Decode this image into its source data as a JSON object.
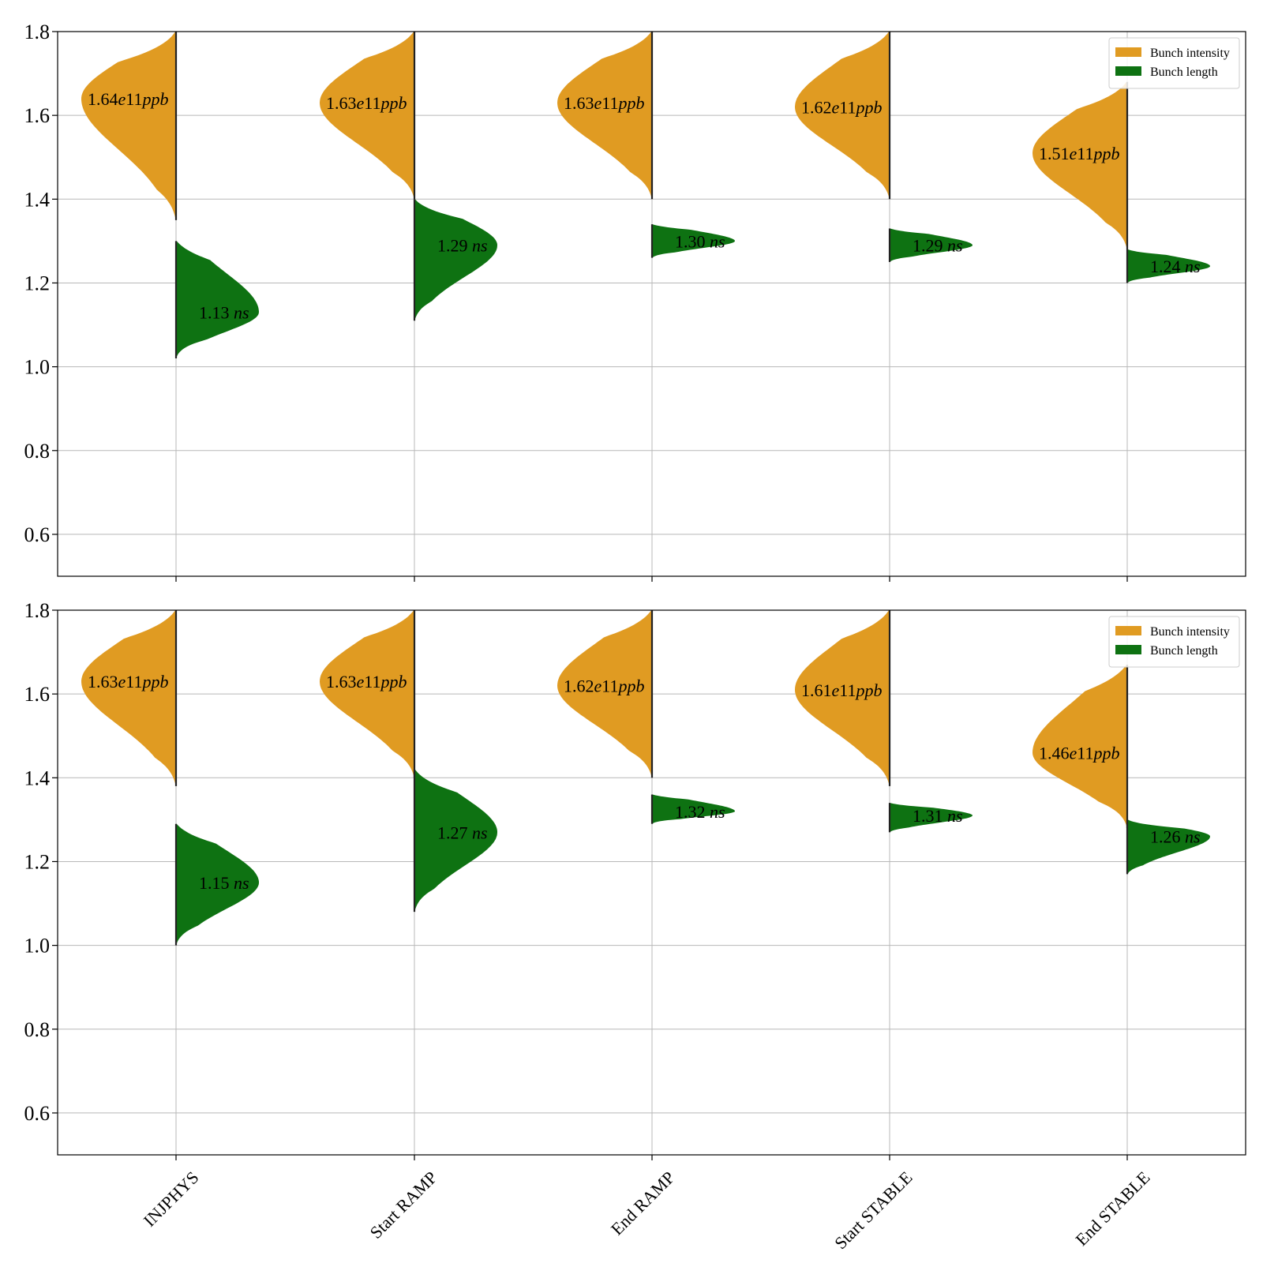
{
  "colors": {
    "intensity": "#e09b22",
    "length": "#0e7212",
    "grid": "#b8b8b8",
    "axes": "#000000"
  },
  "chart_data": [
    {
      "type": "violin",
      "panel": "top",
      "categories": [
        "INJPHYS",
        "Start RAMP",
        "End RAMP",
        "Start STABLE",
        "End STABLE"
      ],
      "ylim": [
        0.5,
        1.8
      ],
      "yticks": [
        0.6,
        0.8,
        1.0,
        1.2,
        1.4,
        1.6,
        1.8
      ],
      "ytick_labels": [
        "0.6",
        "0.8",
        "1.0",
        "1.2",
        "1.4",
        "1.6",
        "1.8"
      ],
      "grid": true,
      "legend": {
        "placement": "top-right",
        "entries": [
          "Bunch intensity",
          "Bunch length"
        ]
      },
      "series": [
        {
          "name": "Bunch intensity",
          "side": "left",
          "color_key": "intensity",
          "medians": [
            1.64,
            1.63,
            1.63,
            1.62,
            1.51
          ],
          "ranges": [
            [
              1.35,
              1.8
            ],
            [
              1.4,
              1.8
            ],
            [
              1.4,
              1.8
            ],
            [
              1.4,
              1.8
            ],
            [
              1.28,
              1.68
            ]
          ],
          "labels": [
            {
              "num": "1.64",
              "exp": "e11",
              "unit": "ppb"
            },
            {
              "num": "1.63",
              "exp": "e11",
              "unit": "ppb"
            },
            {
              "num": "1.63",
              "exp": "e11",
              "unit": "ppb"
            },
            {
              "num": "1.62",
              "exp": "e11",
              "unit": "ppb"
            },
            {
              "num": "1.51",
              "exp": "e11",
              "unit": "ppb"
            }
          ]
        },
        {
          "name": "Bunch length",
          "side": "right",
          "color_key": "length",
          "medians": [
            1.13,
            1.29,
            1.3,
            1.29,
            1.24
          ],
          "ranges": [
            [
              1.02,
              1.3
            ],
            [
              1.11,
              1.4
            ],
            [
              1.26,
              1.34
            ],
            [
              1.25,
              1.33
            ],
            [
              1.2,
              1.28
            ]
          ],
          "labels": [
            {
              "num": "1.13",
              "unit": "ns"
            },
            {
              "num": "1.29",
              "unit": "ns"
            },
            {
              "num": "1.30",
              "unit": "ns"
            },
            {
              "num": "1.29",
              "unit": "ns"
            },
            {
              "num": "1.24",
              "unit": "ns"
            }
          ]
        }
      ]
    },
    {
      "type": "violin",
      "panel": "bottom",
      "categories": [
        "INJPHYS",
        "Start RAMP",
        "End RAMP",
        "Start STABLE",
        "End STABLE"
      ],
      "ylim": [
        0.5,
        1.8
      ],
      "yticks": [
        0.6,
        0.8,
        1.0,
        1.2,
        1.4,
        1.6,
        1.8
      ],
      "ytick_labels": [
        "0.6",
        "0.8",
        "1.0",
        "1.2",
        "1.4",
        "1.6",
        "1.8"
      ],
      "grid": true,
      "legend": {
        "placement": "top-right",
        "entries": [
          "Bunch intensity",
          "Bunch length"
        ]
      },
      "series": [
        {
          "name": "Bunch intensity",
          "side": "left",
          "color_key": "intensity",
          "medians": [
            1.63,
            1.63,
            1.62,
            1.61,
            1.46
          ],
          "ranges": [
            [
              1.38,
              1.8
            ],
            [
              1.4,
              1.8
            ],
            [
              1.4,
              1.8
            ],
            [
              1.38,
              1.8
            ],
            [
              1.28,
              1.67
            ]
          ],
          "labels": [
            {
              "num": "1.63",
              "exp": "e11",
              "unit": "ppb"
            },
            {
              "num": "1.63",
              "exp": "e11",
              "unit": "ppb"
            },
            {
              "num": "1.62",
              "exp": "e11",
              "unit": "ppb"
            },
            {
              "num": "1.61",
              "exp": "e11",
              "unit": "ppb"
            },
            {
              "num": "1.46",
              "exp": "e11",
              "unit": "ppb"
            }
          ]
        },
        {
          "name": "Bunch length",
          "side": "right",
          "color_key": "length",
          "medians": [
            1.15,
            1.27,
            1.32,
            1.31,
            1.26
          ],
          "ranges": [
            [
              1.0,
              1.29
            ],
            [
              1.08,
              1.42
            ],
            [
              1.29,
              1.36
            ],
            [
              1.27,
              1.34
            ],
            [
              1.17,
              1.3
            ]
          ],
          "labels": [
            {
              "num": "1.15",
              "unit": "ns"
            },
            {
              "num": "1.27",
              "unit": "ns"
            },
            {
              "num": "1.32",
              "unit": "ns"
            },
            {
              "num": "1.31",
              "unit": "ns"
            },
            {
              "num": "1.26",
              "unit": "ns"
            }
          ]
        }
      ]
    }
  ]
}
